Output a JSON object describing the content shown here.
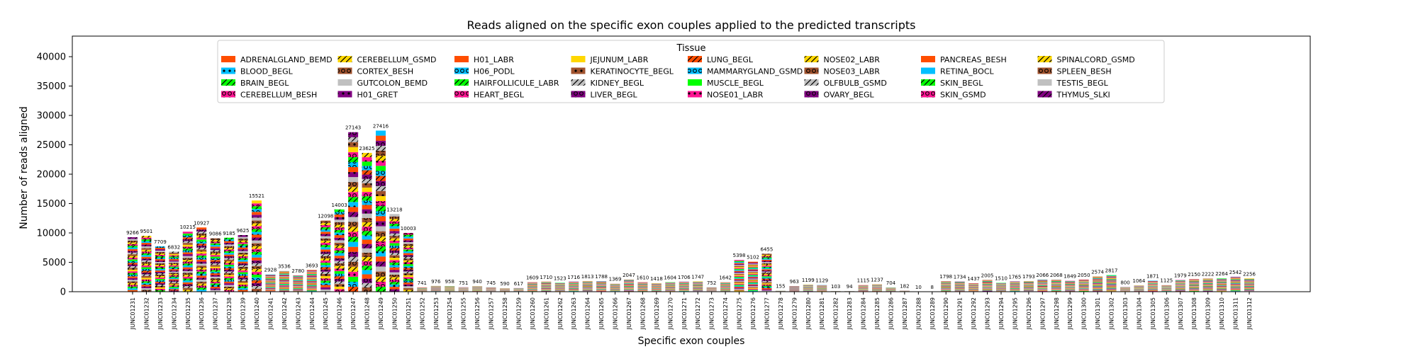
{
  "chart_data": {
    "type": "bar",
    "stacked": true,
    "title": "Reads aligned on the specific exon couples applied to the predicted transcripts",
    "xlabel": "Specific exon couples",
    "ylabel": "Number of reads aligned",
    "ylim": [
      0,
      43500
    ],
    "yticks": [
      0,
      5000,
      10000,
      15000,
      20000,
      25000,
      30000,
      35000,
      40000
    ],
    "ytick_labels": [
      "0",
      "5000",
      "10000",
      "15000",
      "20000",
      "25000",
      "30000",
      "35000",
      "40000"
    ],
    "grid": false,
    "legend": {
      "title": "Tissue",
      "placement": "top",
      "ncol": 8,
      "entries": [
        {
          "name": "ADRENALGLAND_BEMD",
          "color": "#ff4d00",
          "hatch": "none"
        },
        {
          "name": "BLOOD_BEGL",
          "color": "#00bfff",
          "hatch": "dot"
        },
        {
          "name": "BRAIN_BEGL",
          "color": "#00ff00",
          "hatch": "slash"
        },
        {
          "name": "CEREBELLUM_BESH",
          "color": "#ff1493",
          "hatch": "ring"
        },
        {
          "name": "CEREBELLUM_GSMD",
          "color": "#ffd700",
          "hatch": "slash"
        },
        {
          "name": "CORTEX_BESH",
          "color": "#a0522d",
          "hatch": "ring"
        },
        {
          "name": "GUTCOLON_BEMD",
          "color": "#c0c0c0",
          "hatch": "none"
        },
        {
          "name": "H01_GRET",
          "color": "#800080",
          "hatch": "dot"
        },
        {
          "name": "H01_LABR",
          "color": "#ff4d00",
          "hatch": "none"
        },
        {
          "name": "H06_PODL",
          "color": "#00bfff",
          "hatch": "ring"
        },
        {
          "name": "HAIRFOLLICULE_LABR",
          "color": "#00ff00",
          "hatch": "slash"
        },
        {
          "name": "HEART_BEGL",
          "color": "#ff1493",
          "hatch": "ring"
        },
        {
          "name": "JEJUNUM_LABR",
          "color": "#ffd700",
          "hatch": "none"
        },
        {
          "name": "KERATINOCYTE_BEGL",
          "color": "#a0522d",
          "hatch": "dot"
        },
        {
          "name": "KIDNEY_BEGL",
          "color": "#c0c0c0",
          "hatch": "slash"
        },
        {
          "name": "LIVER_BEGL",
          "color": "#800080",
          "hatch": "ring"
        },
        {
          "name": "LUNG_BEGL",
          "color": "#ff4d00",
          "hatch": "slash"
        },
        {
          "name": "MAMMARYGLAND_GSMD",
          "color": "#00bfff",
          "hatch": "ring"
        },
        {
          "name": "MUSCLE_BEGL",
          "color": "#00ff00",
          "hatch": "none"
        },
        {
          "name": "NOSE01_LABR",
          "color": "#ff1493",
          "hatch": "dot"
        },
        {
          "name": "NOSE02_LABR",
          "color": "#ffd700",
          "hatch": "slash"
        },
        {
          "name": "NOSE03_LABR",
          "color": "#a0522d",
          "hatch": "ring"
        },
        {
          "name": "OLFBULB_GSMD",
          "color": "#c0c0c0",
          "hatch": "slash"
        },
        {
          "name": "OVARY_BEGL",
          "color": "#800080",
          "hatch": "ring"
        },
        {
          "name": "PANCREAS_BESH",
          "color": "#ff4d00",
          "hatch": "none"
        },
        {
          "name": "RETINA_BOCL",
          "color": "#00bfff",
          "hatch": "none"
        },
        {
          "name": "SKIN_BEGL",
          "color": "#00ff00",
          "hatch": "slash"
        },
        {
          "name": "SKIN_GSMD",
          "color": "#ff1493",
          "hatch": "ring"
        },
        {
          "name": "SPINALCORD_GSMD",
          "color": "#ffd700",
          "hatch": "slash"
        },
        {
          "name": "SPLEEN_BESH",
          "color": "#a0522d",
          "hatch": "ring"
        },
        {
          "name": "TESTIS_BEGL",
          "color": "#c0c0c0",
          "hatch": "none"
        },
        {
          "name": "THYMUS_SLKI",
          "color": "#800080",
          "hatch": "slash"
        }
      ]
    },
    "categories": [
      "JUNC01231",
      "JUNC01232",
      "JUNC01233",
      "JUNC01234",
      "JUNC01235",
      "JUNC01236",
      "JUNC01237",
      "JUNC01238",
      "JUNC01239",
      "JUNC01240",
      "JUNC01241",
      "JUNC01242",
      "JUNC01243",
      "JUNC01244",
      "JUNC01245",
      "JUNC01246",
      "JUNC01247",
      "JUNC01248",
      "JUNC01249",
      "JUNC01250",
      "JUNC01251",
      "JUNC01252",
      "JUNC01253",
      "JUNC01254",
      "JUNC01255",
      "JUNC01256",
      "JUNC01257",
      "JUNC01258",
      "JUNC01259",
      "JUNC01260",
      "JUNC01261",
      "JUNC01262",
      "JUNC01263",
      "JUNC01264",
      "JUNC01265",
      "JUNC01266",
      "JUNC01267",
      "JUNC01268",
      "JUNC01269",
      "JUNC01270",
      "JUNC01271",
      "JUNC01272",
      "JUNC01273",
      "JUNC01274",
      "JUNC01275",
      "JUNC01276",
      "JUNC01277",
      "JUNC01278",
      "JUNC01279",
      "JUNC01280",
      "JUNC01281",
      "JUNC01282",
      "JUNC01283",
      "JUNC01284",
      "JUNC01285",
      "JUNC01286",
      "JUNC01287",
      "JUNC01288",
      "JUNC01289",
      "JUNC01290",
      "JUNC01291",
      "JUNC01292",
      "JUNC01293",
      "JUNC01294",
      "JUNC01295",
      "JUNC01296",
      "JUNC01297",
      "JUNC01298",
      "JUNC01299",
      "JUNC01300",
      "JUNC01301",
      "JUNC01302",
      "JUNC01303",
      "JUNC01304",
      "JUNC01305",
      "JUNC01306",
      "JUNC01307",
      "JUNC01308",
      "JUNC01309",
      "JUNC01310",
      "JUNC01311",
      "JUNC01312"
    ],
    "totals": [
      9266,
      9501,
      7709,
      6832,
      10215,
      10927,
      9086,
      9185,
      9625,
      15521,
      2928,
      3536,
      2780,
      3693,
      12098,
      14003,
      27143,
      23625,
      27416,
      13218,
      10003,
      741,
      976,
      958,
      751,
      940,
      745,
      590,
      617,
      1609,
      1710,
      1523,
      1716,
      1813,
      1788,
      1369,
      2047,
      1610,
      1418,
      1604,
      1706,
      1747,
      752,
      1642,
      5398,
      5102,
      6455,
      155,
      963,
      1199,
      1129,
      103,
      94,
      1115,
      1237,
      704,
      182,
      10,
      8,
      1798,
      1734,
      1437,
      2005,
      1510,
      1765,
      1793,
      2066,
      2068,
      1849,
      2050,
      2574,
      2817,
      800,
      1064,
      1871,
      1125,
      1979,
      2150,
      2222,
      2264,
      2542,
      2256
    ],
    "total_labels": [
      "9266",
      "9501",
      "7709",
      "6832",
      "10215",
      "10927",
      "9086",
      "9185",
      "9625",
      "15521",
      "2928",
      "3536",
      "2780",
      "3693",
      "12098",
      "14003",
      "27143",
      "23625",
      "27416",
      "13218",
      "10003",
      "741",
      "976",
      "958",
      "751",
      "940",
      "745",
      "590",
      "617",
      "1609",
      "1710",
      "1523",
      "1716",
      "1813",
      "1788",
      "1369",
      "2047",
      "1610",
      "1418",
      "1604",
      "1706",
      "1747",
      "752",
      "1642",
      "5398",
      "5102",
      "6455",
      "155",
      "963",
      "1199",
      "1129",
      "103",
      "94",
      "1115",
      "1237",
      "704",
      "182",
      "10",
      "8",
      "1798",
      "1734",
      "1437",
      "2005",
      "1510",
      "1765",
      "1793",
      "2066",
      "2068",
      "1849",
      "2050",
      "2574",
      "2817",
      "800",
      "1064",
      "1871",
      "1125",
      "1979",
      "2150",
      "2222",
      "2264",
      "2542",
      "2256"
    ]
  }
}
